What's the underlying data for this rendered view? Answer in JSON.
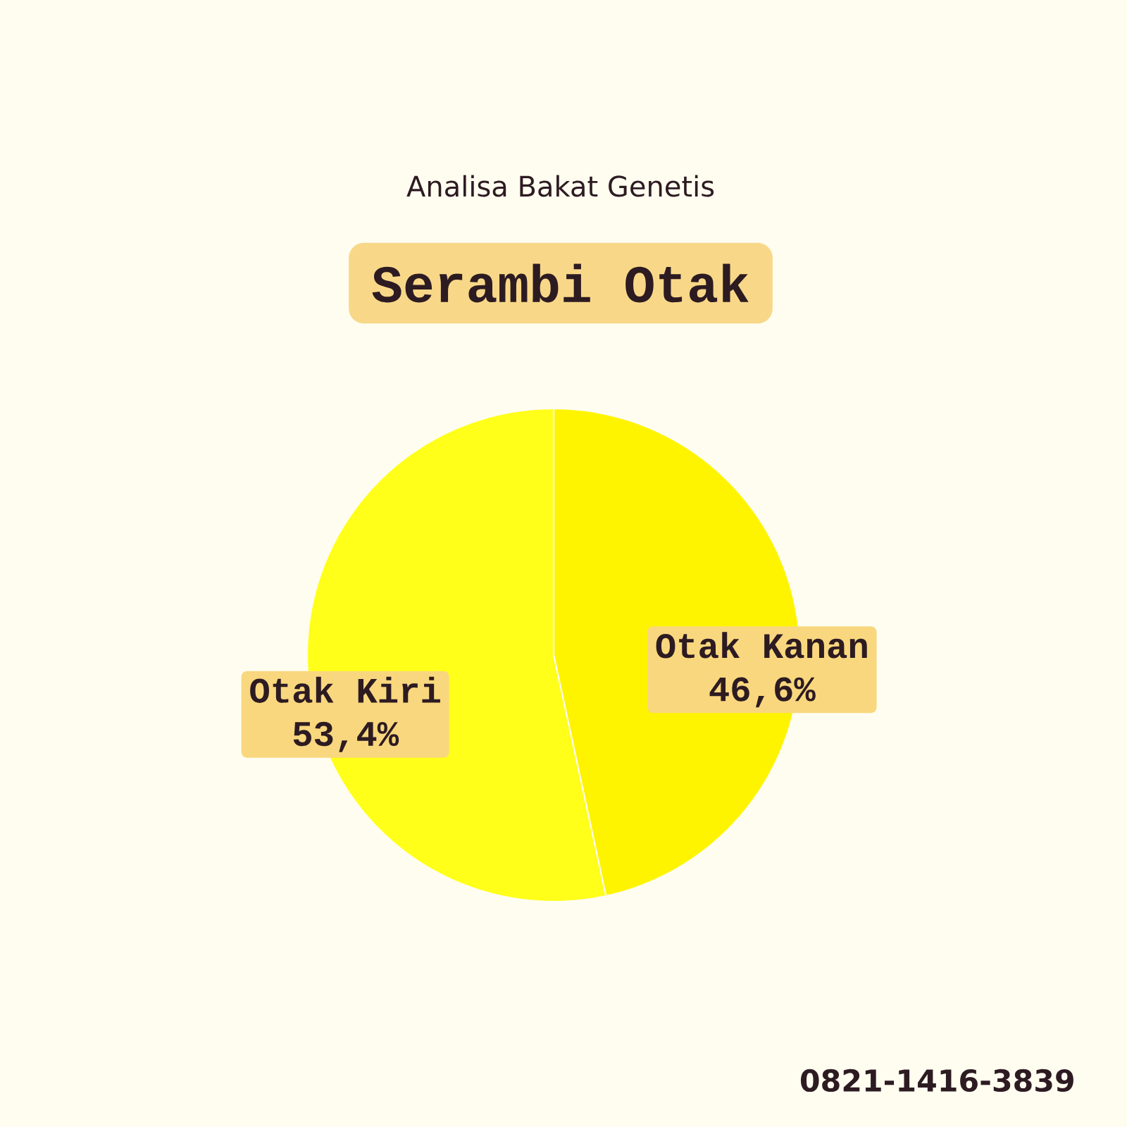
{
  "chart_data": {
    "type": "pie",
    "title": "Serambi Otak",
    "subtitle": "Analisa Bakat Genetis",
    "categories": [
      "Otak Kanan",
      "Otak Kiri"
    ],
    "values": [
      46.6,
      53.4
    ],
    "colors": [
      "#fff400",
      "#ffff1a"
    ],
    "value_labels": [
      "46,6%",
      "53,4%"
    ],
    "annotations": [
      "0821-1416-3839"
    ]
  }
}
